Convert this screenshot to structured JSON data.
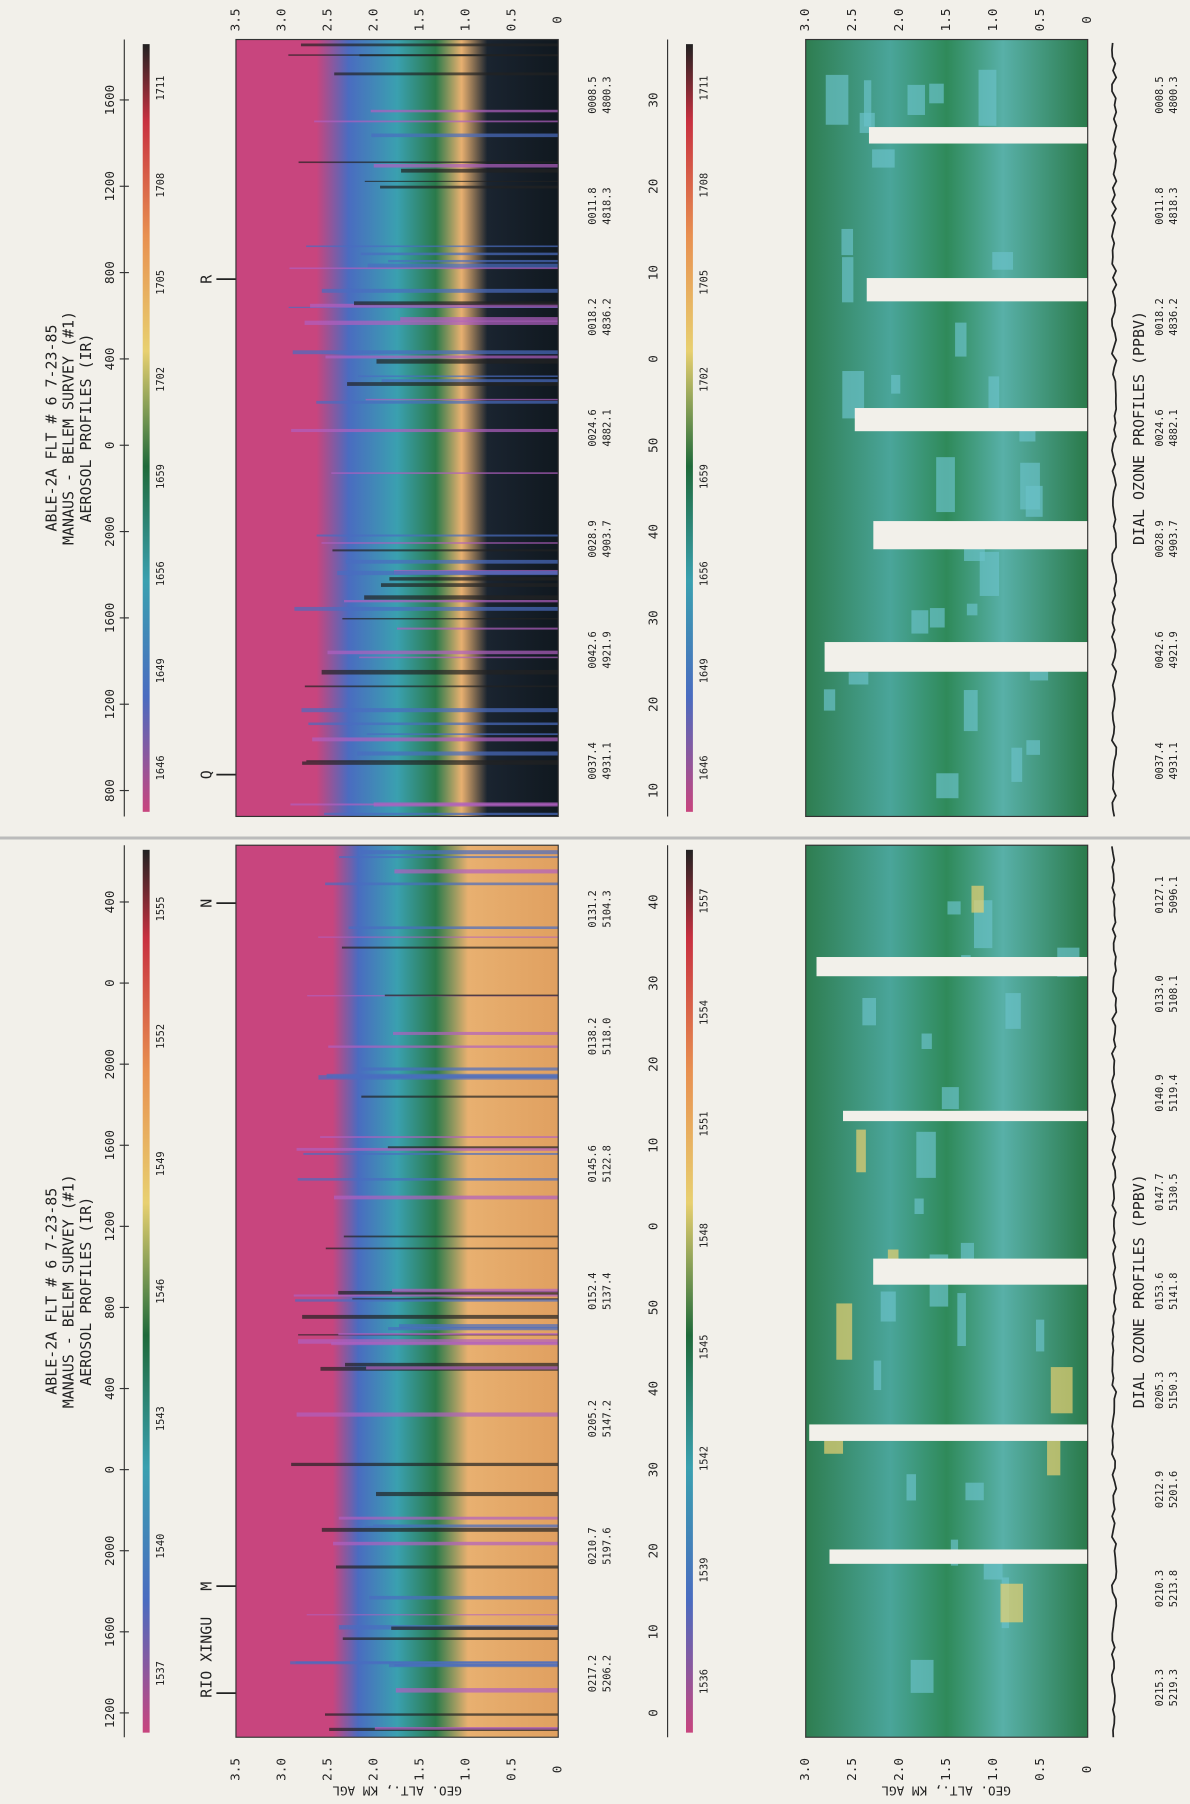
{
  "panels": [
    {
      "title": [
        "ABLE-2A FLT # 6  7-23-85",
        "MANAUS - BELEM SURVEY (#1)",
        "AEROSOL PROFILES (IR)"
      ],
      "time_ticks": [
        "1200",
        "1600",
        "2000",
        "0",
        "400",
        "800",
        "1200",
        "1600",
        "2000",
        "0",
        "400"
      ],
      "colorbar_labels": [
        "1537",
        "1540",
        "1543",
        "1546",
        "1549",
        "1552",
        "1555"
      ],
      "markers": [
        "RIO XINGU",
        "M",
        "N"
      ],
      "aerosol_alt_ticks": [
        "3.5",
        "3.0",
        "2.5",
        "2.0",
        "1.5",
        "1.0",
        "0.5",
        "0"
      ],
      "aerosol_positions": [
        [
          "0217.2",
          "5206.2"
        ],
        [
          "0210.7",
          "5197.6"
        ],
        [
          "0205.2",
          "5147.2"
        ],
        [
          "0152.4",
          "5137.4"
        ],
        [
          "0145.6",
          "5122.8"
        ],
        [
          "0138.2",
          "5118.0"
        ],
        [
          "0131.2",
          "5104.3"
        ]
      ],
      "ozone_time_ticks": [
        "0",
        "10",
        "20",
        "30",
        "40",
        "50",
        "0",
        "10",
        "20",
        "30",
        "40"
      ],
      "ozone_colorbar_labels": [
        "1536",
        "1539",
        "1542",
        "1545",
        "1548",
        "1551",
        "1554",
        "1557"
      ],
      "ozone_alt_ticks": [
        "3.0",
        "2.5",
        "2.0",
        "1.5",
        "1.0",
        "0.5",
        "0"
      ],
      "ozone_positions": [
        [
          "0215.3",
          "5219.3"
        ],
        [
          "0210.3",
          "5213.8"
        ],
        [
          "0212.9",
          "5201.6"
        ],
        [
          "0205.3",
          "5150.3"
        ],
        [
          "0153.6",
          "5141.8"
        ],
        [
          "0147.7",
          "5130.5"
        ],
        [
          "0140.9",
          "5119.4"
        ],
        [
          "0133.0",
          "5108.1"
        ],
        [
          "0127.1",
          "5096.1"
        ]
      ],
      "axis_label": "GEO. ALT., KM AGL",
      "ozone_title": "DIAL OZONE PROFILES (PPBV)"
    },
    {
      "title": [
        "ABLE-2A FLT # 6  7-23-85",
        "MANAUS - BELEM SURVEY (#1)",
        "AEROSOL PROFILES (IR)"
      ],
      "time_ticks": [
        "800",
        "1200",
        "1600",
        "2000",
        "0",
        "400",
        "800",
        "1200",
        "1600"
      ],
      "colorbar_labels": [
        "1646",
        "1649",
        "1656",
        "1659",
        "1702",
        "1705",
        "1708",
        "1711"
      ],
      "markers": [
        "Q",
        "R"
      ],
      "aerosol_alt_ticks": [
        "3.5",
        "3.0",
        "2.5",
        "2.0",
        "1.5",
        "1.0",
        "0.5",
        "0"
      ],
      "aerosol_positions": [
        [
          "0037.4",
          "4931.1"
        ],
        [
          "0042.6",
          "4921.9"
        ],
        [
          "0028.9",
          "4903.7"
        ],
        [
          "0024.6",
          "4882.1"
        ],
        [
          "0018.2",
          "4836.2"
        ],
        [
          "0011.8",
          "4818.3"
        ],
        [
          "0008.5",
          "4800.3"
        ]
      ],
      "ozone_time_ticks": [
        "10",
        "20",
        "30",
        "40",
        "50",
        "0",
        "10",
        "20",
        "30"
      ],
      "ozone_colorbar_labels": [
        "1646",
        "1649",
        "1656",
        "1659",
        "1702",
        "1705",
        "1708",
        "1711"
      ],
      "ozone_alt_ticks": [
        "3.0",
        "2.5",
        "2.0",
        "1.5",
        "1.0",
        "0.5",
        "0"
      ],
      "ozone_positions": [
        [
          "0037.4",
          "4931.1"
        ],
        [
          "0042.6",
          "4921.9"
        ],
        [
          "0028.9",
          "4903.7"
        ],
        [
          "0024.6",
          "4882.1"
        ],
        [
          "0018.2",
          "4836.2"
        ],
        [
          "0011.8",
          "4818.3"
        ],
        [
          "0008.5",
          "4800.3"
        ]
      ],
      "ozone_title": "DIAL OZONE PROFILES (PPBV)"
    }
  ]
}
